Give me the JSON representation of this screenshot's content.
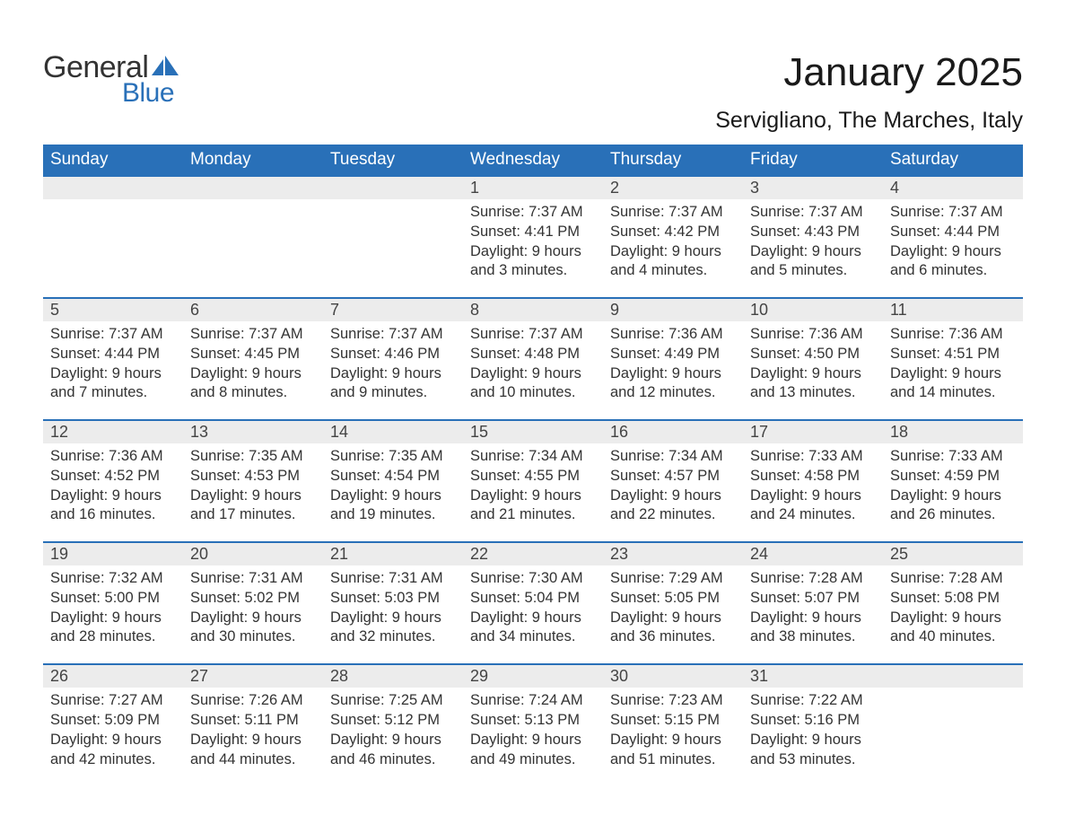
{
  "logo": {
    "general": "General",
    "blue": "Blue",
    "icon_color": "#2970b8"
  },
  "title": "January 2025",
  "location": "Servigliano, The Marches, Italy",
  "header_bg": "#2970b8",
  "daynum_bg": "#ececec",
  "row_border_color": "#2970b8",
  "text_color": "#333333",
  "day_headers": [
    "Sunday",
    "Monday",
    "Tuesday",
    "Wednesday",
    "Thursday",
    "Friday",
    "Saturday"
  ],
  "weeks": [
    {
      "cells": [
        {
          "empty": true
        },
        {
          "empty": true
        },
        {
          "empty": true
        },
        {
          "day": "1",
          "sunrise": "Sunrise: 7:37 AM",
          "sunset": "Sunset: 4:41 PM",
          "daylight1": "Daylight: 9 hours",
          "daylight2": "and 3 minutes."
        },
        {
          "day": "2",
          "sunrise": "Sunrise: 7:37 AM",
          "sunset": "Sunset: 4:42 PM",
          "daylight1": "Daylight: 9 hours",
          "daylight2": "and 4 minutes."
        },
        {
          "day": "3",
          "sunrise": "Sunrise: 7:37 AM",
          "sunset": "Sunset: 4:43 PM",
          "daylight1": "Daylight: 9 hours",
          "daylight2": "and 5 minutes."
        },
        {
          "day": "4",
          "sunrise": "Sunrise: 7:37 AM",
          "sunset": "Sunset: 4:44 PM",
          "daylight1": "Daylight: 9 hours",
          "daylight2": "and 6 minutes."
        }
      ]
    },
    {
      "cells": [
        {
          "day": "5",
          "sunrise": "Sunrise: 7:37 AM",
          "sunset": "Sunset: 4:44 PM",
          "daylight1": "Daylight: 9 hours",
          "daylight2": "and 7 minutes."
        },
        {
          "day": "6",
          "sunrise": "Sunrise: 7:37 AM",
          "sunset": "Sunset: 4:45 PM",
          "daylight1": "Daylight: 9 hours",
          "daylight2": "and 8 minutes."
        },
        {
          "day": "7",
          "sunrise": "Sunrise: 7:37 AM",
          "sunset": "Sunset: 4:46 PM",
          "daylight1": "Daylight: 9 hours",
          "daylight2": "and 9 minutes."
        },
        {
          "day": "8",
          "sunrise": "Sunrise: 7:37 AM",
          "sunset": "Sunset: 4:48 PM",
          "daylight1": "Daylight: 9 hours",
          "daylight2": "and 10 minutes."
        },
        {
          "day": "9",
          "sunrise": "Sunrise: 7:36 AM",
          "sunset": "Sunset: 4:49 PM",
          "daylight1": "Daylight: 9 hours",
          "daylight2": "and 12 minutes."
        },
        {
          "day": "10",
          "sunrise": "Sunrise: 7:36 AM",
          "sunset": "Sunset: 4:50 PM",
          "daylight1": "Daylight: 9 hours",
          "daylight2": "and 13 minutes."
        },
        {
          "day": "11",
          "sunrise": "Sunrise: 7:36 AM",
          "sunset": "Sunset: 4:51 PM",
          "daylight1": "Daylight: 9 hours",
          "daylight2": "and 14 minutes."
        }
      ]
    },
    {
      "cells": [
        {
          "day": "12",
          "sunrise": "Sunrise: 7:36 AM",
          "sunset": "Sunset: 4:52 PM",
          "daylight1": "Daylight: 9 hours",
          "daylight2": "and 16 minutes."
        },
        {
          "day": "13",
          "sunrise": "Sunrise: 7:35 AM",
          "sunset": "Sunset: 4:53 PM",
          "daylight1": "Daylight: 9 hours",
          "daylight2": "and 17 minutes."
        },
        {
          "day": "14",
          "sunrise": "Sunrise: 7:35 AM",
          "sunset": "Sunset: 4:54 PM",
          "daylight1": "Daylight: 9 hours",
          "daylight2": "and 19 minutes."
        },
        {
          "day": "15",
          "sunrise": "Sunrise: 7:34 AM",
          "sunset": "Sunset: 4:55 PM",
          "daylight1": "Daylight: 9 hours",
          "daylight2": "and 21 minutes."
        },
        {
          "day": "16",
          "sunrise": "Sunrise: 7:34 AM",
          "sunset": "Sunset: 4:57 PM",
          "daylight1": "Daylight: 9 hours",
          "daylight2": "and 22 minutes."
        },
        {
          "day": "17",
          "sunrise": "Sunrise: 7:33 AM",
          "sunset": "Sunset: 4:58 PM",
          "daylight1": "Daylight: 9 hours",
          "daylight2": "and 24 minutes."
        },
        {
          "day": "18",
          "sunrise": "Sunrise: 7:33 AM",
          "sunset": "Sunset: 4:59 PM",
          "daylight1": "Daylight: 9 hours",
          "daylight2": "and 26 minutes."
        }
      ]
    },
    {
      "cells": [
        {
          "day": "19",
          "sunrise": "Sunrise: 7:32 AM",
          "sunset": "Sunset: 5:00 PM",
          "daylight1": "Daylight: 9 hours",
          "daylight2": "and 28 minutes."
        },
        {
          "day": "20",
          "sunrise": "Sunrise: 7:31 AM",
          "sunset": "Sunset: 5:02 PM",
          "daylight1": "Daylight: 9 hours",
          "daylight2": "and 30 minutes."
        },
        {
          "day": "21",
          "sunrise": "Sunrise: 7:31 AM",
          "sunset": "Sunset: 5:03 PM",
          "daylight1": "Daylight: 9 hours",
          "daylight2": "and 32 minutes."
        },
        {
          "day": "22",
          "sunrise": "Sunrise: 7:30 AM",
          "sunset": "Sunset: 5:04 PM",
          "daylight1": "Daylight: 9 hours",
          "daylight2": "and 34 minutes."
        },
        {
          "day": "23",
          "sunrise": "Sunrise: 7:29 AM",
          "sunset": "Sunset: 5:05 PM",
          "daylight1": "Daylight: 9 hours",
          "daylight2": "and 36 minutes."
        },
        {
          "day": "24",
          "sunrise": "Sunrise: 7:28 AM",
          "sunset": "Sunset: 5:07 PM",
          "daylight1": "Daylight: 9 hours",
          "daylight2": "and 38 minutes."
        },
        {
          "day": "25",
          "sunrise": "Sunrise: 7:28 AM",
          "sunset": "Sunset: 5:08 PM",
          "daylight1": "Daylight: 9 hours",
          "daylight2": "and 40 minutes."
        }
      ]
    },
    {
      "cells": [
        {
          "day": "26",
          "sunrise": "Sunrise: 7:27 AM",
          "sunset": "Sunset: 5:09 PM",
          "daylight1": "Daylight: 9 hours",
          "daylight2": "and 42 minutes."
        },
        {
          "day": "27",
          "sunrise": "Sunrise: 7:26 AM",
          "sunset": "Sunset: 5:11 PM",
          "daylight1": "Daylight: 9 hours",
          "daylight2": "and 44 minutes."
        },
        {
          "day": "28",
          "sunrise": "Sunrise: 7:25 AM",
          "sunset": "Sunset: 5:12 PM",
          "daylight1": "Daylight: 9 hours",
          "daylight2": "and 46 minutes."
        },
        {
          "day": "29",
          "sunrise": "Sunrise: 7:24 AM",
          "sunset": "Sunset: 5:13 PM",
          "daylight1": "Daylight: 9 hours",
          "daylight2": "and 49 minutes."
        },
        {
          "day": "30",
          "sunrise": "Sunrise: 7:23 AM",
          "sunset": "Sunset: 5:15 PM",
          "daylight1": "Daylight: 9 hours",
          "daylight2": "and 51 minutes."
        },
        {
          "day": "31",
          "sunrise": "Sunrise: 7:22 AM",
          "sunset": "Sunset: 5:16 PM",
          "daylight1": "Daylight: 9 hours",
          "daylight2": "and 53 minutes."
        },
        {
          "empty": true
        }
      ]
    }
  ]
}
